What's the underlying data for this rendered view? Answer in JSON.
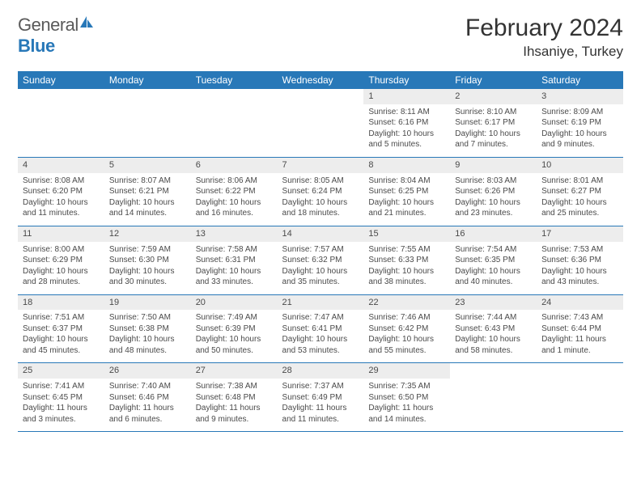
{
  "brand": {
    "text1": "General",
    "text2": "Blue"
  },
  "header": {
    "month": "February 2024",
    "location": "Ihsaniye, Turkey"
  },
  "colors": {
    "header_bg": "#2878b8",
    "header_text": "#ffffff",
    "daynum_bg": "#ededed",
    "text": "#4a4a4a",
    "rule": "#2878b8",
    "page_bg": "#ffffff"
  },
  "typography": {
    "month_fontsize": 30,
    "location_fontsize": 17,
    "dayhead_fontsize": 12,
    "cell_fontsize": 10,
    "font_family": "Arial"
  },
  "days_of_week": [
    "Sunday",
    "Monday",
    "Tuesday",
    "Wednesday",
    "Thursday",
    "Friday",
    "Saturday"
  ],
  "weeks": [
    [
      null,
      null,
      null,
      null,
      {
        "n": "1",
        "sr": "Sunrise: 8:11 AM",
        "ss": "Sunset: 6:16 PM",
        "dl": "Daylight: 10 hours and 5 minutes."
      },
      {
        "n": "2",
        "sr": "Sunrise: 8:10 AM",
        "ss": "Sunset: 6:17 PM",
        "dl": "Daylight: 10 hours and 7 minutes."
      },
      {
        "n": "3",
        "sr": "Sunrise: 8:09 AM",
        "ss": "Sunset: 6:19 PM",
        "dl": "Daylight: 10 hours and 9 minutes."
      }
    ],
    [
      {
        "n": "4",
        "sr": "Sunrise: 8:08 AM",
        "ss": "Sunset: 6:20 PM",
        "dl": "Daylight: 10 hours and 11 minutes."
      },
      {
        "n": "5",
        "sr": "Sunrise: 8:07 AM",
        "ss": "Sunset: 6:21 PM",
        "dl": "Daylight: 10 hours and 14 minutes."
      },
      {
        "n": "6",
        "sr": "Sunrise: 8:06 AM",
        "ss": "Sunset: 6:22 PM",
        "dl": "Daylight: 10 hours and 16 minutes."
      },
      {
        "n": "7",
        "sr": "Sunrise: 8:05 AM",
        "ss": "Sunset: 6:24 PM",
        "dl": "Daylight: 10 hours and 18 minutes."
      },
      {
        "n": "8",
        "sr": "Sunrise: 8:04 AM",
        "ss": "Sunset: 6:25 PM",
        "dl": "Daylight: 10 hours and 21 minutes."
      },
      {
        "n": "9",
        "sr": "Sunrise: 8:03 AM",
        "ss": "Sunset: 6:26 PM",
        "dl": "Daylight: 10 hours and 23 minutes."
      },
      {
        "n": "10",
        "sr": "Sunrise: 8:01 AM",
        "ss": "Sunset: 6:27 PM",
        "dl": "Daylight: 10 hours and 25 minutes."
      }
    ],
    [
      {
        "n": "11",
        "sr": "Sunrise: 8:00 AM",
        "ss": "Sunset: 6:29 PM",
        "dl": "Daylight: 10 hours and 28 minutes."
      },
      {
        "n": "12",
        "sr": "Sunrise: 7:59 AM",
        "ss": "Sunset: 6:30 PM",
        "dl": "Daylight: 10 hours and 30 minutes."
      },
      {
        "n": "13",
        "sr": "Sunrise: 7:58 AM",
        "ss": "Sunset: 6:31 PM",
        "dl": "Daylight: 10 hours and 33 minutes."
      },
      {
        "n": "14",
        "sr": "Sunrise: 7:57 AM",
        "ss": "Sunset: 6:32 PM",
        "dl": "Daylight: 10 hours and 35 minutes."
      },
      {
        "n": "15",
        "sr": "Sunrise: 7:55 AM",
        "ss": "Sunset: 6:33 PM",
        "dl": "Daylight: 10 hours and 38 minutes."
      },
      {
        "n": "16",
        "sr": "Sunrise: 7:54 AM",
        "ss": "Sunset: 6:35 PM",
        "dl": "Daylight: 10 hours and 40 minutes."
      },
      {
        "n": "17",
        "sr": "Sunrise: 7:53 AM",
        "ss": "Sunset: 6:36 PM",
        "dl": "Daylight: 10 hours and 43 minutes."
      }
    ],
    [
      {
        "n": "18",
        "sr": "Sunrise: 7:51 AM",
        "ss": "Sunset: 6:37 PM",
        "dl": "Daylight: 10 hours and 45 minutes."
      },
      {
        "n": "19",
        "sr": "Sunrise: 7:50 AM",
        "ss": "Sunset: 6:38 PM",
        "dl": "Daylight: 10 hours and 48 minutes."
      },
      {
        "n": "20",
        "sr": "Sunrise: 7:49 AM",
        "ss": "Sunset: 6:39 PM",
        "dl": "Daylight: 10 hours and 50 minutes."
      },
      {
        "n": "21",
        "sr": "Sunrise: 7:47 AM",
        "ss": "Sunset: 6:41 PM",
        "dl": "Daylight: 10 hours and 53 minutes."
      },
      {
        "n": "22",
        "sr": "Sunrise: 7:46 AM",
        "ss": "Sunset: 6:42 PM",
        "dl": "Daylight: 10 hours and 55 minutes."
      },
      {
        "n": "23",
        "sr": "Sunrise: 7:44 AM",
        "ss": "Sunset: 6:43 PM",
        "dl": "Daylight: 10 hours and 58 minutes."
      },
      {
        "n": "24",
        "sr": "Sunrise: 7:43 AM",
        "ss": "Sunset: 6:44 PM",
        "dl": "Daylight: 11 hours and 1 minute."
      }
    ],
    [
      {
        "n": "25",
        "sr": "Sunrise: 7:41 AM",
        "ss": "Sunset: 6:45 PM",
        "dl": "Daylight: 11 hours and 3 minutes."
      },
      {
        "n": "26",
        "sr": "Sunrise: 7:40 AM",
        "ss": "Sunset: 6:46 PM",
        "dl": "Daylight: 11 hours and 6 minutes."
      },
      {
        "n": "27",
        "sr": "Sunrise: 7:38 AM",
        "ss": "Sunset: 6:48 PM",
        "dl": "Daylight: 11 hours and 9 minutes."
      },
      {
        "n": "28",
        "sr": "Sunrise: 7:37 AM",
        "ss": "Sunset: 6:49 PM",
        "dl": "Daylight: 11 hours and 11 minutes."
      },
      {
        "n": "29",
        "sr": "Sunrise: 7:35 AM",
        "ss": "Sunset: 6:50 PM",
        "dl": "Daylight: 11 hours and 14 minutes."
      },
      null,
      null
    ]
  ]
}
